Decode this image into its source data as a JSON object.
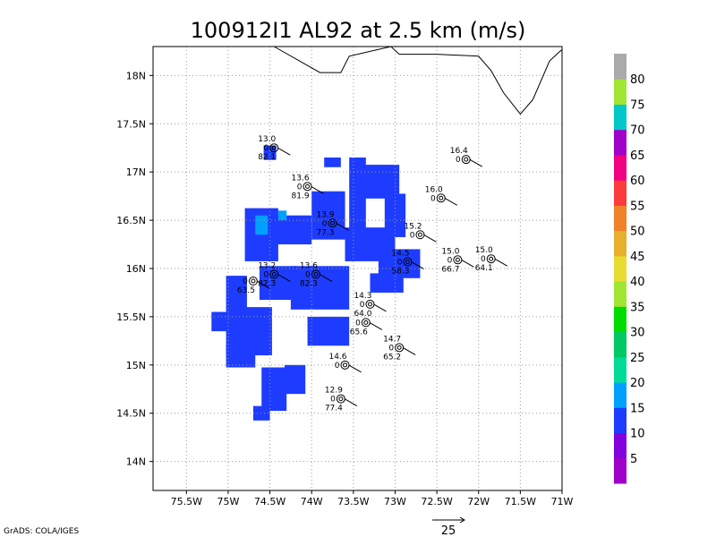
{
  "chart_data": {
    "type": "heatmap",
    "title": "100912I1 AL92 at 2.5 km (m/s)",
    "x_axis": {
      "range": [
        -75.9,
        -71.0
      ],
      "ticks": [
        {
          "value": -75.5,
          "label": "75.5W"
        },
        {
          "value": -75.0,
          "label": "75W"
        },
        {
          "value": -74.5,
          "label": "74.5W"
        },
        {
          "value": -74.0,
          "label": "74W"
        },
        {
          "value": -73.5,
          "label": "73.5W"
        },
        {
          "value": -73.0,
          "label": "73W"
        },
        {
          "value": -72.5,
          "label": "72.5W"
        },
        {
          "value": -72.0,
          "label": "72W"
        },
        {
          "value": -71.5,
          "label": "71.5W"
        },
        {
          "value": -71.0,
          "label": "71W"
        }
      ]
    },
    "y_axis": {
      "range": [
        13.7,
        18.3
      ],
      "ticks": [
        {
          "value": 14.0,
          "label": "14N"
        },
        {
          "value": 14.5,
          "label": "14.5N"
        },
        {
          "value": 15.0,
          "label": "15N"
        },
        {
          "value": 15.5,
          "label": "15.5N"
        },
        {
          "value": 16.0,
          "label": "16N"
        },
        {
          "value": 16.5,
          "label": "16.5N"
        },
        {
          "value": 17.0,
          "label": "17N"
        },
        {
          "value": 17.5,
          "label": "17.5N"
        },
        {
          "value": 18.0,
          "label": "18N"
        }
      ]
    },
    "grid": true,
    "colorbar": {
      "placement": "right",
      "colors": [
        "#a000c8",
        "#8200dc",
        "#1e3cff",
        "#00a0ff",
        "#00dc96",
        "#00c864",
        "#00dc00",
        "#a0e632",
        "#e6dc32",
        "#e6af2d",
        "#f08228",
        "#fa3c3c",
        "#f00082",
        "#a000c8",
        "#00c8c8",
        "#a0e632",
        "#aaaaaa"
      ],
      "labels": [
        "5",
        "10",
        "15",
        "20",
        "25",
        "30",
        "35",
        "40",
        "45",
        "50",
        "55",
        "60",
        "65",
        "70",
        "75",
        "80"
      ]
    },
    "cells": [
      {
        "lon": -74.5,
        "lat": 17.2,
        "w": 0.15,
        "h": 0.15,
        "value": 10
      },
      {
        "lon": -73.75,
        "lat": 17.1,
        "w": 0.2,
        "h": 0.1,
        "value": 10
      },
      {
        "lon": -73.45,
        "lat": 16.75,
        "w": 0.2,
        "h": 0.8,
        "value": 10
      },
      {
        "lon": -73.2,
        "lat": 16.9,
        "w": 0.5,
        "h": 0.35,
        "value": 10
      },
      {
        "lon": -73.0,
        "lat": 16.55,
        "w": 0.25,
        "h": 0.45,
        "value": 10
      },
      {
        "lon": -73.8,
        "lat": 16.55,
        "w": 0.4,
        "h": 0.5,
        "value": 10
      },
      {
        "lon": -74.25,
        "lat": 16.4,
        "w": 0.5,
        "h": 0.3,
        "value": 10
      },
      {
        "lon": -73.3,
        "lat": 16.25,
        "w": 0.6,
        "h": 0.35,
        "value": 10
      },
      {
        "lon": -74.6,
        "lat": 16.35,
        "w": 0.4,
        "h": 0.55,
        "value": 10
      },
      {
        "lon": -74.6,
        "lat": 16.45,
        "w": 0.15,
        "h": 0.2,
        "value": 15
      },
      {
        "lon": -74.35,
        "lat": 16.55,
        "w": 0.1,
        "h": 0.1,
        "value": 15
      },
      {
        "lon": -72.95,
        "lat": 16.05,
        "w": 0.5,
        "h": 0.3,
        "value": 10
      },
      {
        "lon": -73.1,
        "lat": 15.85,
        "w": 0.4,
        "h": 0.2,
        "value": 10
      },
      {
        "lon": -73.9,
        "lat": 15.8,
        "w": 0.7,
        "h": 0.45,
        "value": 10
      },
      {
        "lon": -74.4,
        "lat": 15.85,
        "w": 0.45,
        "h": 0.35,
        "value": 10
      },
      {
        "lon": -73.8,
        "lat": 15.35,
        "w": 0.5,
        "h": 0.3,
        "value": 10
      },
      {
        "lon": -74.9,
        "lat": 15.75,
        "w": 0.25,
        "h": 0.35,
        "value": 10
      },
      {
        "lon": -74.75,
        "lat": 15.35,
        "w": 0.55,
        "h": 0.5,
        "value": 10
      },
      {
        "lon": -74.85,
        "lat": 15.1,
        "w": 0.35,
        "h": 0.25,
        "value": 10
      },
      {
        "lon": -75.05,
        "lat": 15.45,
        "w": 0.3,
        "h": 0.2,
        "value": 10
      },
      {
        "lon": -74.45,
        "lat": 14.75,
        "w": 0.3,
        "h": 0.45,
        "value": 10
      },
      {
        "lon": -74.2,
        "lat": 14.85,
        "w": 0.25,
        "h": 0.3,
        "value": 10
      },
      {
        "lon": -74.6,
        "lat": 14.5,
        "w": 0.2,
        "h": 0.15,
        "value": 10
      }
    ],
    "coastline": [
      [
        -74.45,
        18.3
      ],
      [
        -73.9,
        18.03
      ],
      [
        -73.65,
        18.03
      ],
      [
        -73.55,
        18.2
      ],
      [
        -73.3,
        18.25
      ],
      [
        -73.05,
        18.3
      ],
      [
        -72.95,
        18.22
      ],
      [
        -72.5,
        18.22
      ],
      [
        -72.0,
        18.2
      ],
      [
        -71.85,
        18.05
      ],
      [
        -71.7,
        17.82
      ],
      [
        -71.5,
        17.6
      ],
      [
        -71.35,
        17.75
      ],
      [
        -71.15,
        18.15
      ],
      [
        -71.0,
        18.27
      ]
    ],
    "track_points": [
      {
        "lon": -74.45,
        "lat": 17.25,
        "label_top": "13.0",
        "label_bottom": "82.1"
      },
      {
        "lon": -74.05,
        "lat": 16.85,
        "label_top": "13.6",
        "label_bottom": "81.9"
      },
      {
        "lon": -73.75,
        "lat": 16.47,
        "label_top": "13.9",
        "label_bottom": "77.3"
      },
      {
        "lon": -72.15,
        "lat": 17.13,
        "label_top": "16.4",
        "label_bottom": ""
      },
      {
        "lon": -72.45,
        "lat": 16.73,
        "label_top": "16.0",
        "label_bottom": ""
      },
      {
        "lon": -72.7,
        "lat": 16.35,
        "label_top": "15.2",
        "label_bottom": ""
      },
      {
        "lon": -72.85,
        "lat": 16.07,
        "label_top": "14.5",
        "label_bottom": "58.3"
      },
      {
        "lon": -72.25,
        "lat": 16.09,
        "label_top": "15.0",
        "label_bottom": "66.7"
      },
      {
        "lon": -71.85,
        "lat": 16.1,
        "label_top": "15.0",
        "label_bottom": "64.1"
      },
      {
        "lon": -74.7,
        "lat": 15.87,
        "label_top": "",
        "label_bottom": "63.5"
      },
      {
        "lon": -74.45,
        "lat": 15.94,
        "label_top": "13.2",
        "label_bottom": "82.3"
      },
      {
        "lon": -73.95,
        "lat": 15.94,
        "label_top": "13.6",
        "label_bottom": "82.3"
      },
      {
        "lon": -73.3,
        "lat": 15.63,
        "label_top": "14.3",
        "label_bottom": "64.0"
      },
      {
        "lon": -73.35,
        "lat": 15.44,
        "label_top": "",
        "label_bottom": "65.6"
      },
      {
        "lon": -72.95,
        "lat": 15.18,
        "label_top": "14.7",
        "label_bottom": "65.2"
      },
      {
        "lon": -73.6,
        "lat": 15.0,
        "label_top": "14.6",
        "label_bottom": ""
      },
      {
        "lon": -73.65,
        "lat": 14.65,
        "label_top": "12.9",
        "label_bottom": "77.4"
      }
    ],
    "reference_vector": {
      "label": "25"
    },
    "credit": "GrADS: COLA/IGES"
  }
}
